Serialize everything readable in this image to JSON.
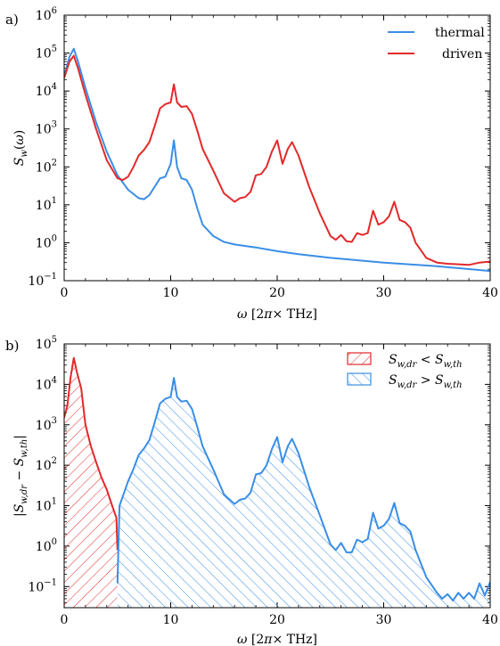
{
  "chart_data": [
    {
      "panel_label": "a)",
      "type": "line",
      "xlabel": "ω [2π× THz]",
      "ylabel": "S_w(ω)",
      "xlim": [
        0,
        40
      ],
      "ylim": [
        0.1,
        1000000
      ],
      "yscale": "log",
      "xticks": [
        "0",
        "10",
        "20",
        "30",
        "40"
      ],
      "yticks": [
        {
          "base": "10",
          "exp": "−1"
        },
        {
          "base": "10",
          "exp": "0"
        },
        {
          "base": "10",
          "exp": "1"
        },
        {
          "base": "10",
          "exp": "2"
        },
        {
          "base": "10",
          "exp": "3"
        },
        {
          "base": "10",
          "exp": "4"
        },
        {
          "base": "10",
          "exp": "5"
        },
        {
          "base": "10",
          "exp": "6"
        }
      ],
      "legend_position": "top-right",
      "series": [
        {
          "name": "thermal",
          "color": "#3a8ee6",
          "x": [
            0.0,
            0.5,
            0.9,
            1.3,
            2.0,
            3.0,
            4.0,
            5.0,
            6.0,
            7.0,
            7.5,
            8.0,
            8.5,
            9.0,
            9.5,
            10.0,
            10.3,
            10.6,
            11.0,
            11.5,
            12.0,
            12.5,
            13.0,
            14.0,
            15.0,
            16.0,
            18.0,
            20.0,
            22.0,
            25.0,
            30.0,
            35.0,
            40.0
          ],
          "y": [
            25000,
            80000,
            130000,
            60000,
            12000,
            1500,
            250,
            60,
            25,
            15,
            14,
            18,
            30,
            50,
            55,
            120,
            500,
            100,
            50,
            45,
            25,
            8,
            3,
            1.5,
            1.05,
            0.9,
            0.75,
            0.6,
            0.5,
            0.4,
            0.3,
            0.24,
            0.18
          ]
        },
        {
          "name": "driven",
          "color": "#e3292a",
          "x": [
            0.0,
            0.5,
            0.9,
            1.3,
            2.0,
            3.0,
            4.0,
            5.0,
            5.5,
            6.0,
            6.5,
            7.0,
            7.5,
            8.0,
            8.5,
            9.0,
            9.5,
            10.0,
            10.3,
            10.6,
            11.0,
            11.5,
            12.0,
            12.5,
            13.0,
            14.0,
            15.0,
            16.0,
            16.5,
            17.0,
            17.5,
            18.0,
            18.5,
            19.0,
            19.5,
            20.0,
            20.5,
            21.0,
            21.4,
            22.0,
            23.0,
            24.0,
            25.0,
            25.5,
            26.0,
            26.5,
            27.0,
            27.5,
            28.0,
            28.5,
            29.0,
            29.5,
            30.0,
            30.5,
            31.0,
            31.5,
            32.0,
            32.5,
            33.0,
            34.0,
            35.0,
            36.0,
            37.0,
            38.0,
            39.0,
            40.0
          ],
          "y": [
            22000,
            60000,
            85000,
            40000,
            8000,
            1000,
            150,
            50,
            45,
            55,
            100,
            200,
            280,
            450,
            1200,
            3500,
            4500,
            5000,
            15000,
            5000,
            3800,
            4000,
            2500,
            900,
            300,
            80,
            20,
            12,
            15,
            16,
            22,
            60,
            65,
            100,
            250,
            500,
            120,
            300,
            450,
            200,
            30,
            6,
            1.5,
            1.2,
            1.6,
            1.1,
            1.05,
            1.8,
            1.6,
            1.8,
            7,
            3,
            3.5,
            5,
            12,
            4,
            3.5,
            2.5,
            1,
            0.4,
            0.3,
            0.28,
            0.27,
            0.26,
            0.3,
            0.32
          ]
        }
      ]
    },
    {
      "panel_label": "b)",
      "type": "area",
      "xlabel": "ω [2π× THz]",
      "ylabel": "|S_w,dr − S_w,th|",
      "xlim": [
        0,
        40
      ],
      "ylim": [
        0.03,
        100000
      ],
      "yscale": "log",
      "xticks": [
        "0",
        "10",
        "20",
        "30",
        "40"
      ],
      "yticks": [
        {
          "base": "10",
          "exp": "−1"
        },
        {
          "base": "10",
          "exp": "0"
        },
        {
          "base": "10",
          "exp": "1"
        },
        {
          "base": "10",
          "exp": "2"
        },
        {
          "base": "10",
          "exp": "3"
        },
        {
          "base": "10",
          "exp": "4"
        },
        {
          "base": "10",
          "exp": "5"
        }
      ],
      "legend_position": "top-right",
      "series": [
        {
          "name": "S_w,dr < S_w,th",
          "color": "#e3292a",
          "x": [
            0.0,
            0.3,
            0.6,
            0.9,
            1.2,
            1.6,
            2.0,
            2.5,
            3.0,
            3.5,
            4.0,
            4.5,
            4.9,
            5.0
          ],
          "y": [
            1500,
            3000,
            15000,
            45000,
            20000,
            8000,
            1000,
            300,
            120,
            50,
            25,
            10,
            5,
            0.8
          ]
        },
        {
          "name": "S_w,dr > S_w,th",
          "color": "#3a8ee6",
          "x": [
            5.0,
            5.2,
            5.6,
            6.0,
            6.5,
            7.0,
            7.5,
            8.0,
            8.5,
            9.0,
            9.5,
            10.0,
            10.3,
            10.6,
            11.0,
            11.5,
            12.0,
            12.5,
            13.0,
            14.0,
            15.0,
            16.0,
            16.5,
            17.0,
            17.5,
            18.0,
            18.5,
            19.0,
            19.5,
            20.0,
            20.5,
            21.0,
            21.4,
            22.0,
            23.0,
            24.0,
            25.0,
            25.5,
            26.0,
            26.5,
            27.0,
            27.5,
            28.0,
            28.5,
            29.0,
            29.5,
            30.0,
            30.5,
            31.0,
            31.5,
            32.0,
            32.5,
            33.0,
            34.0,
            35.0,
            35.5,
            36.0,
            36.5,
            37.0,
            37.5,
            38.0,
            38.5,
            39.0,
            39.5,
            40.0
          ],
          "y": [
            0.12,
            10,
            20,
            40,
            80,
            180,
            260,
            420,
            1150,
            3400,
            4400,
            4900,
            14500,
            4900,
            3750,
            3950,
            2470,
            880,
            296,
            78.5,
            19,
            11,
            14,
            15,
            21,
            59,
            64,
            99,
            249,
            499,
            119,
            299,
            449,
            199,
            29.7,
            5.8,
            1.1,
            0.8,
            1.2,
            0.7,
            0.7,
            1.45,
            1.25,
            1.5,
            6.7,
            2.7,
            3.2,
            4.7,
            11.7,
            3.7,
            3.2,
            2.3,
            0.8,
            0.17,
            0.07,
            0.05,
            0.065,
            0.045,
            0.07,
            0.05,
            0.07,
            0.05,
            0.12,
            0.06,
            0.13
          ]
        }
      ]
    }
  ]
}
